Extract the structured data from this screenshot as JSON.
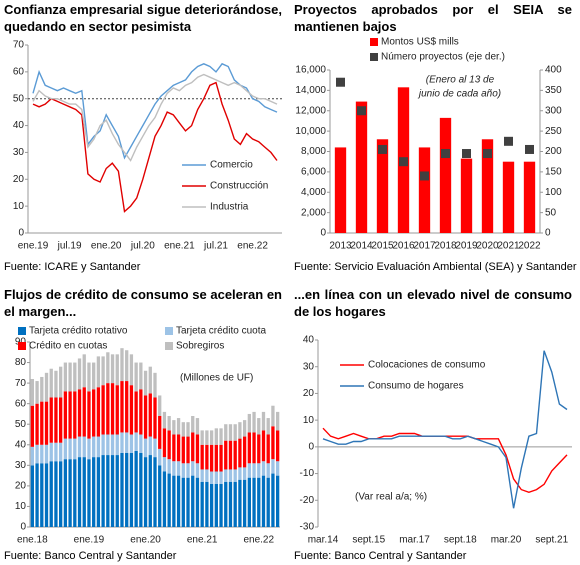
{
  "chart_data": [
    {
      "type": "line",
      "title": "Confianza empresarial sigue deteriorándose, quedando en sector pesimista",
      "source": "Fuente: ICARE y Santander",
      "categories": [
        "ene.19",
        null,
        null,
        null,
        null,
        null,
        "jul.19",
        null,
        null,
        null,
        null,
        null,
        "ene.20",
        null,
        null,
        null,
        null,
        null,
        "jul.20",
        null,
        null,
        null,
        null,
        null,
        "ene.21",
        null,
        null,
        null,
        null,
        null,
        "jul.21",
        null,
        null,
        null,
        null,
        null,
        "ene.22",
        null,
        null,
        null,
        null
      ],
      "series": [
        {
          "name": "Comercio",
          "color": "#5b9bd5",
          "values": [
            52,
            60,
            55,
            54,
            53,
            54,
            53,
            52,
            53,
            33,
            36,
            38,
            44,
            40,
            36,
            28,
            32,
            36,
            40,
            44,
            48,
            51,
            53,
            55,
            56,
            57,
            60,
            62,
            63,
            62,
            60,
            63,
            62,
            57,
            55,
            54,
            50,
            49,
            47,
            46,
            45
          ]
        },
        {
          "name": "Construcción",
          "color": "#e00000",
          "values": [
            48,
            47,
            48,
            50,
            49,
            48,
            47,
            46,
            44,
            22,
            20,
            19,
            24,
            26,
            23,
            8,
            10,
            13,
            20,
            28,
            36,
            40,
            45,
            44,
            41,
            38,
            40,
            46,
            50,
            55,
            56,
            48,
            42,
            35,
            33,
            37,
            35,
            34,
            32,
            30,
            27
          ]
        },
        {
          "name": "Industria",
          "color": "#bfbfbf",
          "values": [
            49,
            53,
            51,
            50,
            50,
            49,
            48,
            48,
            46,
            32,
            35,
            40,
            42,
            37,
            33,
            30,
            27,
            32,
            36,
            40,
            43,
            48,
            52,
            54,
            53,
            55,
            56,
            58,
            59,
            58,
            57,
            56,
            55,
            56,
            55,
            53,
            51,
            50,
            50,
            49,
            48
          ]
        }
      ],
      "ylim": [
        0,
        70
      ],
      "yticks": [
        0,
        10,
        20,
        30,
        40,
        50,
        60,
        70
      ],
      "reference_line": 50,
      "grid": false,
      "legend": "lower right"
    },
    {
      "type": "bar",
      "title": "Proyectos aprobados por el SEIA se mantienen bajos",
      "source": "Fuente: Servicio Evaluación Ambiental (SEA) y Santander",
      "annotation": [
        "(Enero al 13 de",
        "junio de cada año)"
      ],
      "categories": [
        "2013",
        "2014",
        "2015",
        "2016",
        "2017",
        "2018",
        "2019",
        "2020",
        "2021",
        "2022"
      ],
      "series": [
        {
          "name": "Montos US$ mills",
          "color": "#ff0000",
          "values": [
            8400,
            12900,
            9200,
            14300,
            8400,
            11300,
            7300,
            9200,
            7000,
            7000
          ]
        },
        {
          "name": "Número proyectos (eje der.)",
          "color": "#404040",
          "axis": "y2",
          "marker": "square",
          "values": [
            370,
            300,
            205,
            175,
            140,
            195,
            195,
            195,
            225,
            205
          ]
        }
      ],
      "ylim": [
        0,
        16000
      ],
      "yticks": [
        0,
        {
          "value": 2000,
          "label": "2,000"
        },
        {
          "value": 4000,
          "label": "4,000"
        },
        {
          "value": 6000,
          "label": "6,000"
        },
        {
          "value": 8000,
          "label": "8,000"
        },
        {
          "value": 10000,
          "label": "10,000"
        },
        {
          "value": 12000,
          "label": "12,000"
        },
        {
          "value": 14000,
          "label": "14,000"
        },
        {
          "value": 16000,
          "label": "16,000"
        }
      ],
      "y2lim": [
        0,
        400
      ],
      "y2ticks": [
        0,
        50,
        100,
        150,
        200,
        250,
        300,
        350,
        400
      ],
      "grid": false,
      "legend": "upper center"
    },
    {
      "type": "stacked_bar",
      "title": "Flujos de crédito de consumo se aceleran en el margen...",
      "source": "Fuente: Banco Central y Santander",
      "annotation": "(Millones de UF)",
      "categories": [
        "ene.18",
        null,
        null,
        null,
        null,
        null,
        null,
        null,
        null,
        null,
        null,
        null,
        "ene.19",
        null,
        null,
        null,
        null,
        null,
        null,
        null,
        null,
        null,
        null,
        null,
        "ene.20",
        null,
        null,
        null,
        null,
        null,
        null,
        null,
        null,
        null,
        null,
        null,
        "ene.21",
        null,
        null,
        null,
        null,
        null,
        null,
        null,
        null,
        null,
        null,
        null,
        "ene.22",
        null,
        null,
        null,
        null
      ],
      "series": [
        {
          "name": "Tarjeta crédito rotativo",
          "color": "#0070c0",
          "values": [
            30,
            31,
            31,
            31,
            32,
            32,
            32,
            33,
            33,
            33,
            34,
            34,
            33,
            34,
            34,
            35,
            35,
            35,
            35,
            36,
            36,
            36,
            37,
            36,
            34,
            35,
            34,
            30,
            27,
            26,
            25,
            25,
            24,
            24,
            25,
            24,
            22,
            22,
            21,
            21,
            21,
            22,
            22,
            22,
            23,
            23,
            24,
            24,
            24,
            25,
            24,
            26,
            25
          ]
        },
        {
          "name": "Tarjeta crédito cuota",
          "color": "#9dc3e6",
          "values": [
            9,
            9,
            9,
            9,
            9,
            9,
            9,
            10,
            10,
            10,
            10,
            10,
            10,
            10,
            10,
            10,
            10,
            10,
            10,
            10,
            10,
            9,
            9,
            9,
            9,
            9,
            9,
            8,
            7,
            7,
            7,
            7,
            7,
            7,
            7,
            7,
            6,
            6,
            6,
            6,
            6,
            6,
            6,
            6,
            6,
            6,
            7,
            7,
            7,
            7,
            7,
            7,
            7
          ]
        },
        {
          "name": "Crédito en cuotas",
          "color": "#ff0000",
          "values": [
            20,
            20,
            21,
            21,
            22,
            22,
            22,
            23,
            23,
            23,
            23,
            24,
            23,
            23,
            24,
            24,
            25,
            25,
            24,
            25,
            25,
            24,
            20,
            22,
            21,
            21,
            20,
            16,
            14,
            14,
            13,
            13,
            13,
            13,
            14,
            14,
            12,
            12,
            13,
            13,
            13,
            14,
            14,
            14,
            14,
            15,
            15,
            15,
            14,
            15,
            14,
            16,
            15
          ]
        },
        {
          "name": "Sobregiros",
          "color": "#bfbfbf",
          "values": [
            13,
            11,
            12,
            14,
            14,
            13,
            15,
            14,
            14,
            14,
            15,
            16,
            14,
            13,
            15,
            14,
            15,
            14,
            15,
            16,
            15,
            15,
            14,
            13,
            12,
            13,
            12,
            10,
            8,
            7,
            7,
            8,
            7,
            7,
            8,
            8,
            7,
            7,
            7,
            8,
            8,
            8,
            8,
            8,
            8,
            8,
            9,
            10,
            8,
            9,
            8,
            10,
            9
          ]
        }
      ],
      "ylim": [
        0,
        90
      ],
      "yticks": [
        0,
        10,
        20,
        30,
        40,
        50,
        60,
        70,
        80,
        90
      ],
      "grid": false,
      "legend": "upper left"
    },
    {
      "type": "line",
      "title": "...en línea con un elevado nivel de consumo de los hogares",
      "source": "Fuente: Banco Central y Santander",
      "annotation": "(Var real a/a; %)",
      "categories": [
        "mar.14",
        null,
        null,
        null,
        null,
        null,
        "sept.15",
        null,
        null,
        null,
        null,
        null,
        "mar.17",
        null,
        null,
        null,
        null,
        null,
        "sept.18",
        null,
        null,
        null,
        null,
        null,
        "mar.20",
        null,
        null,
        null,
        null,
        null,
        "sept.21",
        null,
        null
      ],
      "series": [
        {
          "name": "Colocaciones de consumo",
          "color": "#ff0000",
          "values": [
            7,
            4,
            3,
            4,
            5,
            4,
            3,
            3,
            4,
            4,
            5,
            5,
            5,
            4,
            4,
            4,
            4,
            4,
            4,
            4,
            3,
            3,
            3,
            3,
            -3,
            -12,
            -16,
            -17,
            -16,
            -14,
            -9,
            -6,
            -3
          ]
        },
        {
          "name": "Consumo de hogares",
          "color": "#2e75b6",
          "values": [
            3,
            2,
            1,
            1,
            2,
            2,
            3,
            3,
            3,
            3,
            4,
            4,
            4,
            4,
            4,
            4,
            4,
            3,
            3,
            4,
            3,
            2,
            1,
            0,
            -4,
            -23,
            -8,
            4,
            5,
            36,
            28,
            16,
            14
          ]
        }
      ],
      "ylim": [
        -30,
        40
      ],
      "yticks": [
        -30,
        -20,
        -10,
        0,
        10,
        20,
        30,
        40
      ],
      "grid": false,
      "legend": "upper left"
    }
  ]
}
